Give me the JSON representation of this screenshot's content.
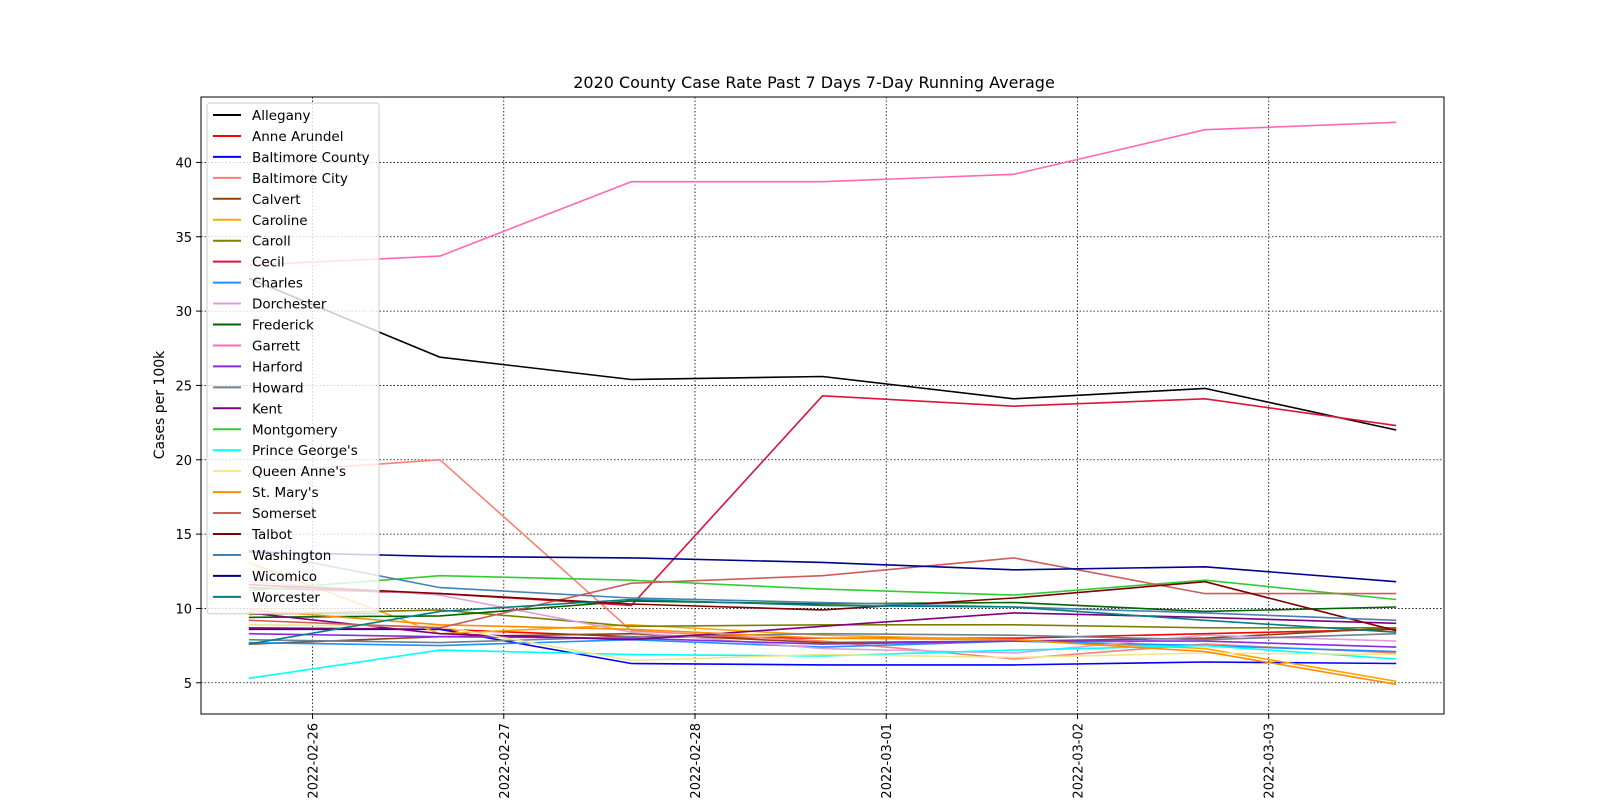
{
  "chart_data": {
    "type": "line",
    "title": "2020 County Case Rate  Past 7 Days 7-Day Running Average",
    "xlabel": "",
    "ylabel": "Cases per 100k",
    "x": [
      "2022-02-25T16:00",
      "2022-02-26T16:00",
      "2022-02-27T16:00",
      "2022-02-28T16:00",
      "2022-03-01T16:00",
      "2022-03-02T16:00",
      "2022-03-03T16:00"
    ],
    "xticks": [
      "2022-02-26",
      "2022-02-27",
      "2022-02-28",
      "2022-03-01",
      "2022-03-02",
      "2022-03-03"
    ],
    "xlim": [
      "2022-02-25T10:00",
      "2022-03-03T22:00"
    ],
    "yticks": [
      5,
      10,
      15,
      20,
      25,
      30,
      35,
      40
    ],
    "ylim": [
      2.9,
      44.4
    ],
    "grid": true,
    "legend_position": "upper-left",
    "series": [
      {
        "name": "Allegany",
        "color": "#000000",
        "values": [
          32.2,
          26.9,
          25.4,
          25.6,
          24.1,
          24.8,
          22.0
        ]
      },
      {
        "name": "Anne Arundel",
        "color": "#ff0000",
        "values": [
          8.7,
          8.6,
          8.1,
          8.0,
          8.0,
          8.3,
          8.6
        ]
      },
      {
        "name": "Baltimore County",
        "color": "#0000ff",
        "values": [
          8.6,
          8.6,
          6.3,
          6.2,
          6.2,
          6.4,
          6.3
        ]
      },
      {
        "name": "Baltimore City",
        "color": "#fa8072",
        "values": [
          19.1,
          20.0,
          8.5,
          7.8,
          6.6,
          7.6,
          7.0
        ]
      },
      {
        "name": "Calvert",
        "color": "#8b4513",
        "values": [
          7.6,
          8.1,
          8.3,
          7.7,
          7.8,
          8.0,
          8.7
        ]
      },
      {
        "name": "Caroline",
        "color": "#ffa500",
        "values": [
          13.1,
          8.3,
          8.9,
          8.2,
          7.9,
          7.3,
          5.1
        ]
      },
      {
        "name": "Caroll",
        "color": "#808000",
        "values": [
          9.6,
          9.9,
          8.8,
          8.9,
          8.9,
          8.7,
          8.7
        ]
      },
      {
        "name": "Cecil",
        "color": "#dc143c",
        "values": [
          11.4,
          11.0,
          10.2,
          24.3,
          23.6,
          24.1,
          22.3
        ]
      },
      {
        "name": "Charles",
        "color": "#1e90ff",
        "values": [
          7.7,
          7.5,
          7.9,
          7.4,
          7.8,
          7.5,
          7.1
        ]
      },
      {
        "name": "Dorchester",
        "color": "#dda0dd",
        "values": [
          11.8,
          10.9,
          8.4,
          7.3,
          7.0,
          8.2,
          7.8
        ]
      },
      {
        "name": "Frederick",
        "color": "#006400",
        "values": [
          9.4,
          9.5,
          10.5,
          10.3,
          10.4,
          9.8,
          10.1
        ]
      },
      {
        "name": "Garrett",
        "color": "#ff69b4",
        "values": [
          33.1,
          33.7,
          38.7,
          38.7,
          39.2,
          42.2,
          42.7
        ]
      },
      {
        "name": "Harford",
        "color": "#8a2be2",
        "values": [
          8.3,
          8.1,
          8.0,
          7.6,
          7.8,
          7.8,
          7.4
        ]
      },
      {
        "name": "Howard",
        "color": "#708090",
        "values": [
          7.9,
          7.7,
          8.1,
          8.3,
          8.2,
          7.9,
          8.3
        ]
      },
      {
        "name": "Kent",
        "color": "#800080",
        "values": [
          9.7,
          8.3,
          7.9,
          8.8,
          9.7,
          9.4,
          9.0
        ]
      },
      {
        "name": "Montgomery",
        "color": "#32cd32",
        "values": [
          11.2,
          12.2,
          11.9,
          11.3,
          10.9,
          11.9,
          10.6
        ]
      },
      {
        "name": "Prince George's",
        "color": "#00ffff",
        "values": [
          5.3,
          7.2,
          6.9,
          6.8,
          7.2,
          7.5,
          6.6
        ]
      },
      {
        "name": "Queen Anne's",
        "color": "#f0e68c",
        "values": [
          8.9,
          8.8,
          6.5,
          6.9,
          6.7,
          7.0,
          6.9
        ]
      },
      {
        "name": "St. Mary's",
        "color": "#ff8c00",
        "values": [
          9.9,
          8.9,
          8.6,
          8.0,
          7.9,
          7.1,
          4.9
        ]
      },
      {
        "name": "Somerset",
        "color": "#cd5c5c",
        "values": [
          9.2,
          8.7,
          11.7,
          12.2,
          13.4,
          11.0,
          11.0
        ]
      },
      {
        "name": "Talbot",
        "color": "#800000",
        "values": [
          11.6,
          11.0,
          10.3,
          9.9,
          10.7,
          11.8,
          8.5
        ]
      },
      {
        "name": "Washington",
        "color": "#4682b4",
        "values": [
          13.9,
          11.4,
          10.7,
          10.4,
          10.1,
          9.7,
          9.2
        ]
      },
      {
        "name": "Wicomico",
        "color": "#00008b",
        "values": [
          13.8,
          13.5,
          13.4,
          13.1,
          12.6,
          12.8,
          11.8
        ]
      },
      {
        "name": "Worcester",
        "color": "#008080",
        "values": [
          7.6,
          9.8,
          10.6,
          10.2,
          10.1,
          9.2,
          8.4
        ]
      }
    ]
  }
}
